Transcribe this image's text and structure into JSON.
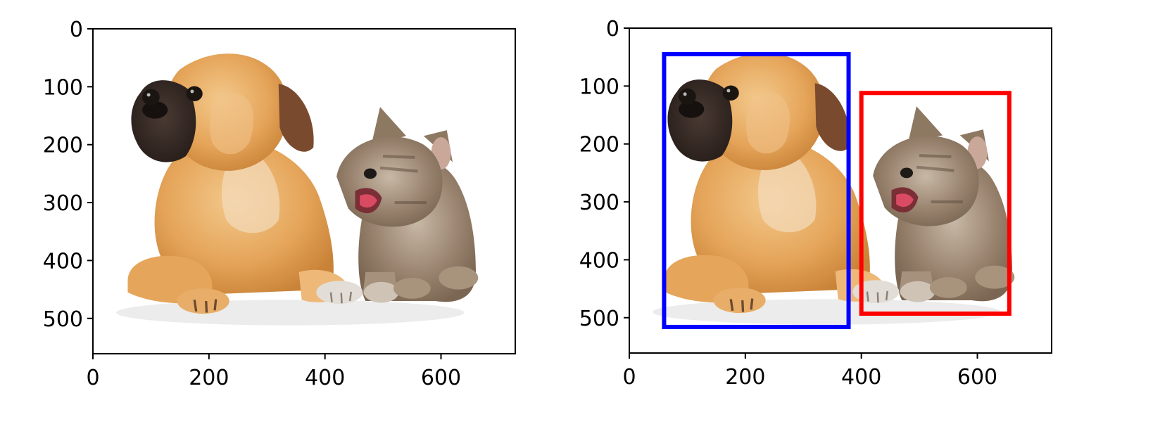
{
  "panels": [
    {
      "id": "left",
      "xlim": [
        0,
        728
      ],
      "ylim_inverted": [
        0,
        561
      ],
      "x_ticks": [
        {
          "value": 0,
          "label": "0"
        },
        {
          "value": 200,
          "label": "200"
        },
        {
          "value": 400,
          "label": "400"
        },
        {
          "value": 600,
          "label": "600"
        }
      ],
      "y_ticks": [
        {
          "value": 0,
          "label": "0"
        },
        {
          "value": 100,
          "label": "100"
        },
        {
          "value": 200,
          "label": "200"
        },
        {
          "value": 300,
          "label": "300"
        },
        {
          "value": 400,
          "label": "400"
        },
        {
          "value": 500,
          "label": "500"
        }
      ],
      "boxes": []
    },
    {
      "id": "right",
      "xlim": [
        0,
        728
      ],
      "ylim_inverted": [
        0,
        561
      ],
      "x_ticks": [
        {
          "value": 0,
          "label": "0"
        },
        {
          "value": 200,
          "label": "200"
        },
        {
          "value": 400,
          "label": "400"
        },
        {
          "value": 600,
          "label": "600"
        }
      ],
      "y_ticks": [
        {
          "value": 0,
          "label": "0"
        },
        {
          "value": 100,
          "label": "100"
        },
        {
          "value": 200,
          "label": "200"
        },
        {
          "value": 300,
          "label": "300"
        },
        {
          "value": 400,
          "label": "400"
        },
        {
          "value": 500,
          "label": "500"
        }
      ],
      "boxes": [
        {
          "name": "dog-bounding-box",
          "color": "#0000ff",
          "x1": 60,
          "y1": 45,
          "x2": 378,
          "y2": 516
        },
        {
          "name": "cat-bounding-box",
          "color": "#ff0000",
          "x1": 400,
          "y1": 112,
          "x2": 655,
          "y2": 493
        }
      ]
    }
  ],
  "image": {
    "subjects": [
      "puppy",
      "kitten"
    ],
    "background": "#ffffff"
  }
}
